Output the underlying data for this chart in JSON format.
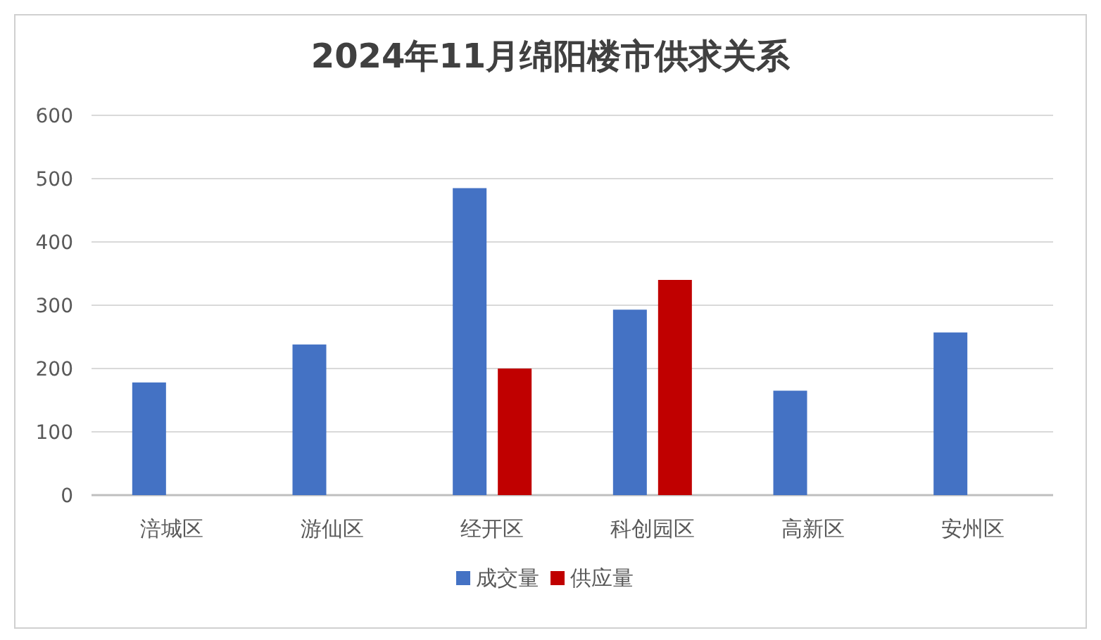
{
  "chart_data": {
    "type": "bar",
    "title": "2024年11月绵阳楼市供求关系",
    "categories": [
      "涪城区",
      "游仙区",
      "经开区",
      "科创园区",
      "高新区",
      "安州区"
    ],
    "series": [
      {
        "name": "成交量",
        "color": "#4472c4",
        "values": [
          178,
          238,
          485,
          293,
          165,
          257
        ]
      },
      {
        "name": "供应量",
        "color": "#c00000",
        "values": [
          null,
          null,
          200,
          340,
          null,
          null
        ]
      }
    ],
    "ylim": [
      0,
      600
    ],
    "yticks": [
      0,
      100,
      200,
      300,
      400,
      500,
      600
    ],
    "grid": "y",
    "legend": "bottom"
  }
}
